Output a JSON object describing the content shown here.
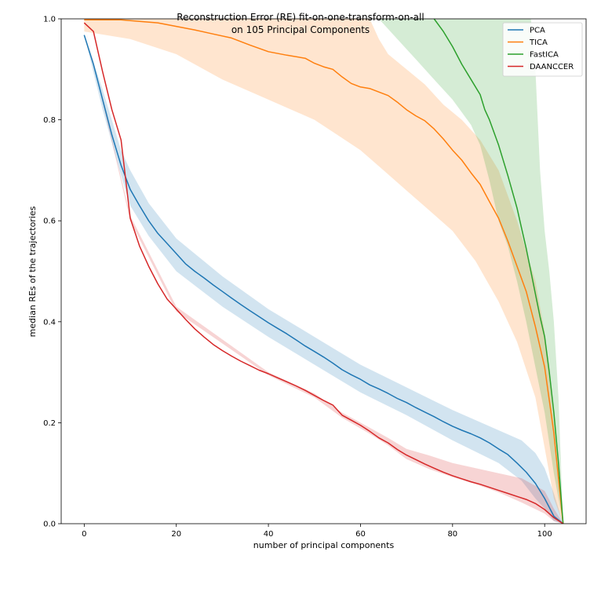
{
  "chart_data": {
    "type": "line",
    "title_lines": [
      "Reconstruction Error (RE) fit-on-one-transform-on-all",
      "on 105 Principal Components"
    ],
    "xlabel": "number of principal components",
    "ylabel": "median REs of the trajectories",
    "xlim": [
      -5,
      109
    ],
    "ylim": [
      0,
      1
    ],
    "xticks": [
      0,
      20,
      40,
      60,
      80,
      100
    ],
    "yticks": [
      0.0,
      0.2,
      0.4,
      0.6,
      0.8,
      1.0
    ],
    "grid": false,
    "legend_position": "top-right",
    "series": [
      {
        "name": "PCA",
        "color": "#1f77b4",
        "points": [
          [
            0,
            0.968
          ],
          [
            2,
            0.91
          ],
          [
            4,
            0.84
          ],
          [
            6,
            0.77
          ],
          [
            8,
            0.71
          ],
          [
            10,
            0.662
          ],
          [
            12,
            0.63
          ],
          [
            14,
            0.6
          ],
          [
            16,
            0.575
          ],
          [
            18,
            0.555
          ],
          [
            20,
            0.535
          ],
          [
            22,
            0.515
          ],
          [
            24,
            0.5
          ],
          [
            26,
            0.487
          ],
          [
            28,
            0.473
          ],
          [
            30,
            0.46
          ],
          [
            32,
            0.447
          ],
          [
            34,
            0.434
          ],
          [
            36,
            0.422
          ],
          [
            38,
            0.41
          ],
          [
            40,
            0.398
          ],
          [
            42,
            0.387
          ],
          [
            44,
            0.376
          ],
          [
            46,
            0.364
          ],
          [
            48,
            0.352
          ],
          [
            50,
            0.341
          ],
          [
            52,
            0.33
          ],
          [
            54,
            0.318
          ],
          [
            56,
            0.305
          ],
          [
            58,
            0.295
          ],
          [
            60,
            0.286
          ],
          [
            62,
            0.275
          ],
          [
            64,
            0.267
          ],
          [
            66,
            0.258
          ],
          [
            68,
            0.248
          ],
          [
            70,
            0.24
          ],
          [
            72,
            0.23
          ],
          [
            74,
            0.221
          ],
          [
            76,
            0.212
          ],
          [
            78,
            0.202
          ],
          [
            80,
            0.193
          ],
          [
            82,
            0.185
          ],
          [
            84,
            0.178
          ],
          [
            86,
            0.17
          ],
          [
            88,
            0.16
          ],
          [
            90,
            0.148
          ],
          [
            92,
            0.137
          ],
          [
            94,
            0.12
          ],
          [
            96,
            0.102
          ],
          [
            98,
            0.08
          ],
          [
            100,
            0.05
          ],
          [
            102,
            0.015
          ],
          [
            104,
            0.0
          ]
        ],
        "band_upper": [
          [
            0,
            0.968
          ],
          [
            4,
            0.86
          ],
          [
            8,
            0.74
          ],
          [
            10,
            0.7
          ],
          [
            14,
            0.635
          ],
          [
            20,
            0.565
          ],
          [
            30,
            0.49
          ],
          [
            40,
            0.425
          ],
          [
            50,
            0.37
          ],
          [
            60,
            0.315
          ],
          [
            70,
            0.27
          ],
          [
            80,
            0.225
          ],
          [
            90,
            0.185
          ],
          [
            95,
            0.165
          ],
          [
            98,
            0.14
          ],
          [
            100,
            0.11
          ],
          [
            102,
            0.06
          ],
          [
            104,
            0.0
          ]
        ],
        "band_lower": [
          [
            0,
            0.968
          ],
          [
            4,
            0.82
          ],
          [
            8,
            0.69
          ],
          [
            10,
            0.63
          ],
          [
            14,
            0.57
          ],
          [
            20,
            0.5
          ],
          [
            30,
            0.43
          ],
          [
            40,
            0.37
          ],
          [
            50,
            0.315
          ],
          [
            60,
            0.26
          ],
          [
            70,
            0.215
          ],
          [
            80,
            0.165
          ],
          [
            90,
            0.12
          ],
          [
            95,
            0.085
          ],
          [
            98,
            0.05
          ],
          [
            100,
            0.03
          ],
          [
            102,
            0.005
          ],
          [
            104,
            0.0
          ]
        ]
      },
      {
        "name": "TICA",
        "color": "#ff7f0e",
        "points": [
          [
            0,
            0.998
          ],
          [
            4,
            0.998
          ],
          [
            8,
            0.998
          ],
          [
            12,
            0.995
          ],
          [
            16,
            0.992
          ],
          [
            20,
            0.985
          ],
          [
            24,
            0.978
          ],
          [
            28,
            0.97
          ],
          [
            32,
            0.962
          ],
          [
            36,
            0.948
          ],
          [
            40,
            0.935
          ],
          [
            44,
            0.928
          ],
          [
            48,
            0.922
          ],
          [
            50,
            0.912
          ],
          [
            52,
            0.905
          ],
          [
            54,
            0.9
          ],
          [
            56,
            0.885
          ],
          [
            58,
            0.872
          ],
          [
            60,
            0.865
          ],
          [
            62,
            0.862
          ],
          [
            64,
            0.855
          ],
          [
            66,
            0.848
          ],
          [
            68,
            0.835
          ],
          [
            70,
            0.82
          ],
          [
            72,
            0.808
          ],
          [
            74,
            0.798
          ],
          [
            76,
            0.782
          ],
          [
            78,
            0.762
          ],
          [
            80,
            0.74
          ],
          [
            82,
            0.72
          ],
          [
            84,
            0.695
          ],
          [
            86,
            0.672
          ],
          [
            88,
            0.638
          ],
          [
            90,
            0.605
          ],
          [
            92,
            0.56
          ],
          [
            94,
            0.51
          ],
          [
            96,
            0.46
          ],
          [
            98,
            0.39
          ],
          [
            100,
            0.31
          ],
          [
            102,
            0.18
          ],
          [
            104,
            0.0
          ]
        ],
        "band_upper": [
          [
            0,
            1.0
          ],
          [
            20,
            1.0
          ],
          [
            40,
            1.0
          ],
          [
            60,
            1.0
          ],
          [
            62,
            1.0
          ],
          [
            64,
            0.96
          ],
          [
            66,
            0.93
          ],
          [
            70,
            0.9
          ],
          [
            74,
            0.87
          ],
          [
            78,
            0.83
          ],
          [
            82,
            0.8
          ],
          [
            86,
            0.76
          ],
          [
            90,
            0.7
          ],
          [
            94,
            0.6
          ],
          [
            98,
            0.48
          ],
          [
            100,
            0.38
          ],
          [
            102,
            0.2
          ],
          [
            104,
            0.0
          ]
        ],
        "band_lower": [
          [
            0,
            0.975
          ],
          [
            10,
            0.96
          ],
          [
            20,
            0.93
          ],
          [
            30,
            0.88
          ],
          [
            40,
            0.84
          ],
          [
            50,
            0.8
          ],
          [
            55,
            0.77
          ],
          [
            60,
            0.74
          ],
          [
            65,
            0.7
          ],
          [
            70,
            0.66
          ],
          [
            75,
            0.62
          ],
          [
            80,
            0.58
          ],
          [
            85,
            0.52
          ],
          [
            90,
            0.44
          ],
          [
            94,
            0.36
          ],
          [
            98,
            0.25
          ],
          [
            100,
            0.15
          ],
          [
            102,
            0.05
          ],
          [
            104,
            0.0
          ]
        ]
      },
      {
        "name": "FastICA",
        "color": "#2ca02c",
        "points": [
          [
            76,
            1.0
          ],
          [
            78,
            0.975
          ],
          [
            80,
            0.945
          ],
          [
            82,
            0.91
          ],
          [
            84,
            0.88
          ],
          [
            86,
            0.85
          ],
          [
            87,
            0.82
          ],
          [
            88,
            0.8
          ],
          [
            90,
            0.75
          ],
          [
            92,
            0.69
          ],
          [
            94,
            0.625
          ],
          [
            95,
            0.585
          ],
          [
            96,
            0.545
          ],
          [
            97,
            0.5
          ],
          [
            98,
            0.455
          ],
          [
            99,
            0.41
          ],
          [
            100,
            0.37
          ],
          [
            101,
            0.3
          ],
          [
            102,
            0.22
          ],
          [
            103,
            0.12
          ],
          [
            104,
            0.0
          ]
        ],
        "band_upper": [
          [
            64,
            1.0
          ],
          [
            80,
            1.0
          ],
          [
            90,
            1.0
          ],
          [
            97,
            1.0
          ],
          [
            98,
            0.9
          ],
          [
            99,
            0.7
          ],
          [
            100,
            0.58
          ],
          [
            101,
            0.5
          ],
          [
            102,
            0.4
          ],
          [
            103,
            0.25
          ],
          [
            104,
            0.0
          ]
        ],
        "band_lower": [
          [
            64,
            1.0
          ],
          [
            68,
            0.96
          ],
          [
            72,
            0.92
          ],
          [
            76,
            0.88
          ],
          [
            80,
            0.84
          ],
          [
            84,
            0.79
          ],
          [
            86,
            0.75
          ],
          [
            88,
            0.68
          ],
          [
            90,
            0.6
          ],
          [
            92,
            0.55
          ],
          [
            94,
            0.48
          ],
          [
            96,
            0.4
          ],
          [
            98,
            0.31
          ],
          [
            100,
            0.22
          ],
          [
            102,
            0.1
          ],
          [
            104,
            0.0
          ]
        ]
      },
      {
        "name": "DAANCCER",
        "color": "#d62728",
        "points": [
          [
            0,
            0.992
          ],
          [
            2,
            0.975
          ],
          [
            4,
            0.895
          ],
          [
            6,
            0.82
          ],
          [
            8,
            0.76
          ],
          [
            10,
            0.605
          ],
          [
            12,
            0.55
          ],
          [
            14,
            0.51
          ],
          [
            16,
            0.475
          ],
          [
            18,
            0.445
          ],
          [
            20,
            0.425
          ],
          [
            22,
            0.405
          ],
          [
            24,
            0.386
          ],
          [
            26,
            0.37
          ],
          [
            28,
            0.355
          ],
          [
            30,
            0.343
          ],
          [
            32,
            0.332
          ],
          [
            34,
            0.322
          ],
          [
            36,
            0.313
          ],
          [
            38,
            0.304
          ],
          [
            40,
            0.297
          ],
          [
            42,
            0.289
          ],
          [
            44,
            0.281
          ],
          [
            46,
            0.273
          ],
          [
            48,
            0.264
          ],
          [
            50,
            0.254
          ],
          [
            52,
            0.244
          ],
          [
            54,
            0.235
          ],
          [
            56,
            0.215
          ],
          [
            58,
            0.205
          ],
          [
            60,
            0.195
          ],
          [
            62,
            0.183
          ],
          [
            64,
            0.17
          ],
          [
            66,
            0.16
          ],
          [
            68,
            0.147
          ],
          [
            70,
            0.136
          ],
          [
            72,
            0.127
          ],
          [
            74,
            0.118
          ],
          [
            76,
            0.11
          ],
          [
            78,
            0.102
          ],
          [
            80,
            0.095
          ],
          [
            82,
            0.089
          ],
          [
            84,
            0.083
          ],
          [
            86,
            0.078
          ],
          [
            88,
            0.072
          ],
          [
            90,
            0.066
          ],
          [
            92,
            0.06
          ],
          [
            94,
            0.054
          ],
          [
            96,
            0.048
          ],
          [
            98,
            0.04
          ],
          [
            100,
            0.028
          ],
          [
            102,
            0.012
          ],
          [
            104,
            0.0
          ]
        ],
        "band_upper": [
          [
            0,
            0.992
          ],
          [
            10,
            0.61
          ],
          [
            20,
            0.43
          ],
          [
            40,
            0.3
          ],
          [
            50,
            0.258
          ],
          [
            56,
            0.22
          ],
          [
            62,
            0.19
          ],
          [
            66,
            0.17
          ],
          [
            70,
            0.148
          ],
          [
            75,
            0.135
          ],
          [
            80,
            0.12
          ],
          [
            85,
            0.11
          ],
          [
            90,
            0.1
          ],
          [
            95,
            0.09
          ],
          [
            100,
            0.065
          ],
          [
            102,
            0.03
          ],
          [
            104,
            0.0
          ]
        ],
        "band_lower": [
          [
            0,
            0.992
          ],
          [
            10,
            0.6
          ],
          [
            20,
            0.42
          ],
          [
            40,
            0.294
          ],
          [
            50,
            0.25
          ],
          [
            56,
            0.21
          ],
          [
            62,
            0.178
          ],
          [
            66,
            0.155
          ],
          [
            70,
            0.128
          ],
          [
            75,
            0.108
          ],
          [
            80,
            0.092
          ],
          [
            85,
            0.078
          ],
          [
            90,
            0.062
          ],
          [
            95,
            0.042
          ],
          [
            100,
            0.02
          ],
          [
            102,
            0.005
          ],
          [
            104,
            0.0
          ]
        ]
      }
    ]
  }
}
